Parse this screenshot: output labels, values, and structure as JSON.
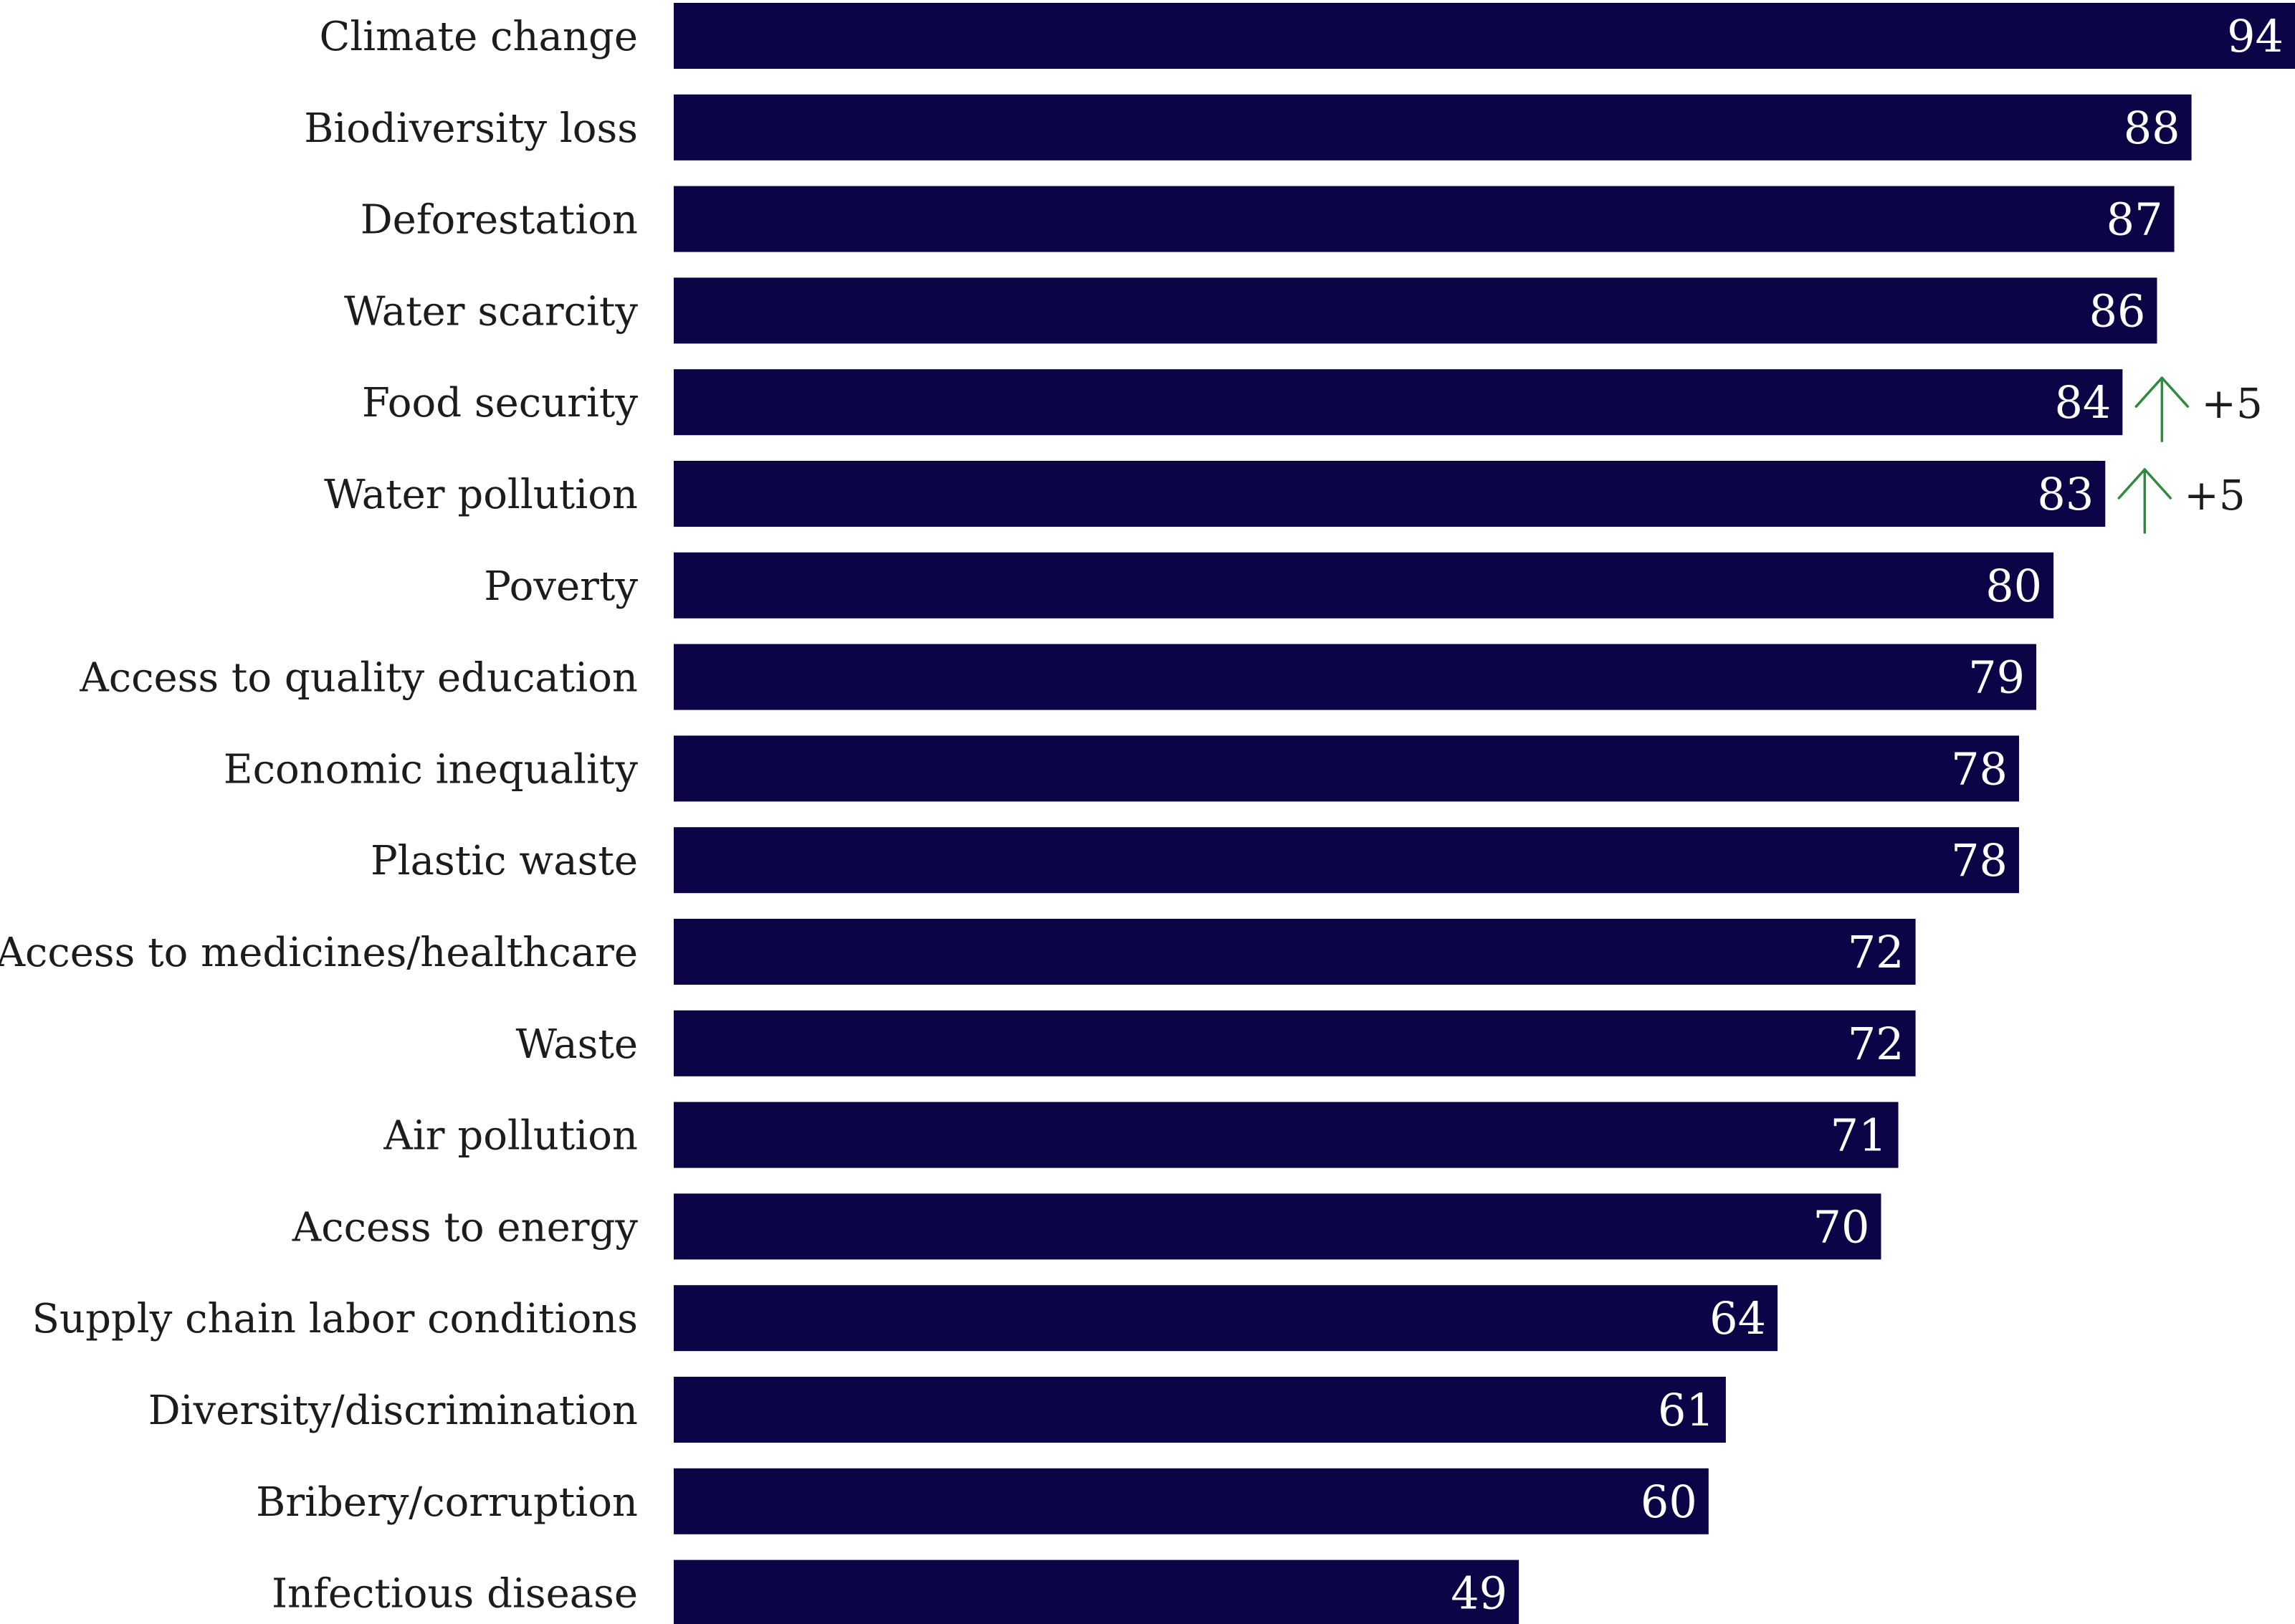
{
  "chart_data": {
    "type": "bar",
    "orientation": "horizontal",
    "title": "",
    "xlabel": "",
    "ylabel": "",
    "xlim": [
      0,
      94
    ],
    "grid": false,
    "categories": [
      "Climate change",
      "Biodiversity loss",
      "Deforestation",
      "Water scarcity",
      "Food security",
      "Water pollution",
      "Poverty",
      "Access to quality education",
      "Economic inequality",
      "Plastic waste",
      "Access to medicines/healthcare",
      "Waste",
      "Air pollution",
      "Access to energy",
      "Supply chain labor conditions",
      "Diversity/discrimination",
      "Bribery/corruption",
      "Infectious disease"
    ],
    "values": [
      94,
      88,
      87,
      86,
      84,
      83,
      80,
      79,
      78,
      78,
      72,
      72,
      71,
      70,
      64,
      61,
      60,
      49
    ],
    "data_labels": [
      "94",
      "88",
      "87",
      "86",
      "84",
      "83",
      "80",
      "79",
      "78",
      "78",
      "72",
      "72",
      "71",
      "70",
      "64",
      "61",
      "60",
      "49"
    ],
    "annotations": [
      {
        "category": "Food security",
        "text": "+5",
        "icon": "arrow-up-icon"
      },
      {
        "category": "Water pollution",
        "text": "+5",
        "icon": "arrow-up-icon"
      }
    ],
    "colors": {
      "bar": "#0b0447",
      "arrow": "#2e8b3e",
      "value_text": "#ffffff",
      "label_text": "#1c1c1c"
    }
  }
}
